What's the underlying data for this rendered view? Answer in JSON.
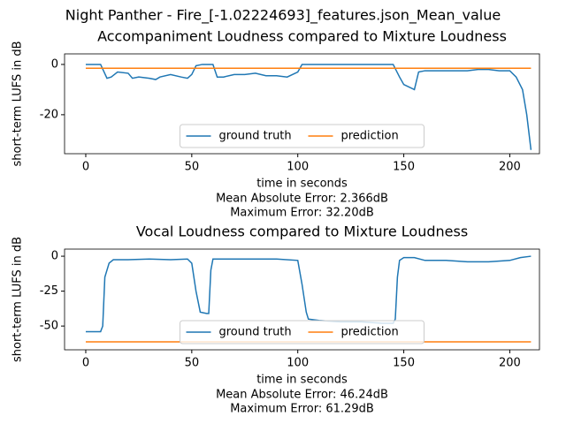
{
  "title": "Night Panther - Fire_[-1.02224693]_features.json_Mean_value",
  "chart_data": [
    {
      "type": "line",
      "title": "Accompaniment Loudness compared to Mixture Loudness",
      "xlabel": "time in seconds",
      "ylabel": "short-term LUFS in dB",
      "notes": [
        "Mean Absolute Error: 2.366dB",
        "Maximum Error: 32.20dB"
      ],
      "x": [
        0,
        7,
        10,
        12,
        15,
        20,
        22,
        25,
        30,
        33,
        35,
        40,
        45,
        48,
        50,
        52,
        55,
        60,
        62,
        65,
        70,
        75,
        80,
        85,
        90,
        95,
        100,
        102,
        105,
        115,
        125,
        135,
        145,
        148,
        150,
        155,
        157,
        160,
        170,
        180,
        185,
        190,
        195,
        200,
        203,
        206,
        208,
        210
      ],
      "series": [
        {
          "name": "ground truth",
          "color": "#1f77b4",
          "values": [
            0,
            0,
            -5.5,
            -5,
            -3,
            -3.5,
            -5.5,
            -5,
            -5.5,
            -6,
            -5,
            -4,
            -5,
            -5.5,
            -4,
            -0.5,
            0,
            0,
            -5,
            -5,
            -4,
            -4,
            -3.5,
            -4.5,
            -4.5,
            -5,
            -3,
            0,
            0,
            0,
            0,
            0,
            0,
            -5,
            -8,
            -10,
            -3,
            -2.5,
            -2.5,
            -2.5,
            -2,
            -2,
            -2.5,
            -2.5,
            -5,
            -10,
            -20,
            -34
          ]
        },
        {
          "name": "prediction",
          "color": "#ff7f0e",
          "values": [
            -1.5,
            -1.5,
            -1.5,
            -1.5,
            -1.5,
            -1.5,
            -1.5,
            -1.5,
            -1.5,
            -1.5,
            -1.5,
            -1.5,
            -1.5,
            -1.5,
            -1.5,
            -1.5,
            -1.5,
            -1.5,
            -1.5,
            -1.5,
            -1.5,
            -1.5,
            -1.5,
            -1.5,
            -1.5,
            -1.5,
            -1.5,
            -1.5,
            -1.5,
            -1.5,
            -1.5,
            -1.5,
            -1.5,
            -1.5,
            -1.5,
            -1.5,
            -1.5,
            -1.5,
            -1.5,
            -1.5,
            -1.5,
            -1.5,
            -1.5,
            -1.5,
            -1.5,
            -1.5,
            -1.5,
            -1.5
          ]
        }
      ],
      "xlim": [
        -10,
        214
      ],
      "ylim": [
        -35.5,
        4.2
      ],
      "xticks": [
        0,
        50,
        100,
        150,
        200
      ],
      "yticks": [
        -20,
        0
      ],
      "legend": "lower center"
    },
    {
      "type": "line",
      "title": "Vocal Loudness compared to Mixture Loudness",
      "xlabel": "time in seconds",
      "ylabel": "short-term LUFS in dB",
      "notes": [
        "Mean Absolute Error: 46.24dB",
        "Maximum Error: 61.29dB"
      ],
      "x": [
        0,
        7,
        8,
        9,
        11,
        13,
        20,
        30,
        40,
        48,
        50,
        52,
        54,
        57,
        58,
        59,
        60,
        70,
        80,
        90,
        100,
        102,
        104,
        105,
        110,
        120,
        130,
        140,
        145,
        146,
        147,
        148,
        150,
        155,
        160,
        170,
        180,
        190,
        200,
        205,
        210
      ],
      "series": [
        {
          "name": "ground truth",
          "color": "#1f77b4",
          "values": [
            -54,
            -54,
            -50,
            -15,
            -5,
            -2.5,
            -2.5,
            -2,
            -2.5,
            -2,
            -5,
            -25,
            -40,
            -41,
            -41,
            -10,
            -2,
            -2,
            -2,
            -2,
            -3,
            -20,
            -40,
            -45,
            -46,
            -47,
            -47,
            -48,
            -48,
            -45,
            -15,
            -3,
            -1,
            -1,
            -3,
            -3,
            -4,
            -4,
            -3,
            -1,
            0
          ]
        },
        {
          "name": "prediction",
          "color": "#ff7f0e",
          "values": [
            -61.3,
            -61.3,
            -61.3,
            -61.3,
            -61.3,
            -61.3,
            -61.3,
            -61.3,
            -61.3,
            -61.3,
            -61.3,
            -61.3,
            -61.3,
            -61.3,
            -61.3,
            -61.3,
            -61.3,
            -61.3,
            -61.3,
            -61.3,
            -61.3,
            -61.3,
            -61.3,
            -61.3,
            -61.3,
            -61.3,
            -61.3,
            -61.3,
            -61.3,
            -61.3,
            -61.3,
            -61.3,
            -61.3,
            -61.3,
            -61.3,
            -61.3,
            -61.3,
            -61.3,
            -61.3,
            -61.3,
            -61.3
          ]
        }
      ],
      "xlim": [
        -10,
        214
      ],
      "ylim": [
        -67,
        5.1
      ],
      "xticks": [
        0,
        50,
        100,
        150,
        200
      ],
      "yticks": [
        -50,
        -25,
        0
      ],
      "legend": "lower center"
    }
  ]
}
